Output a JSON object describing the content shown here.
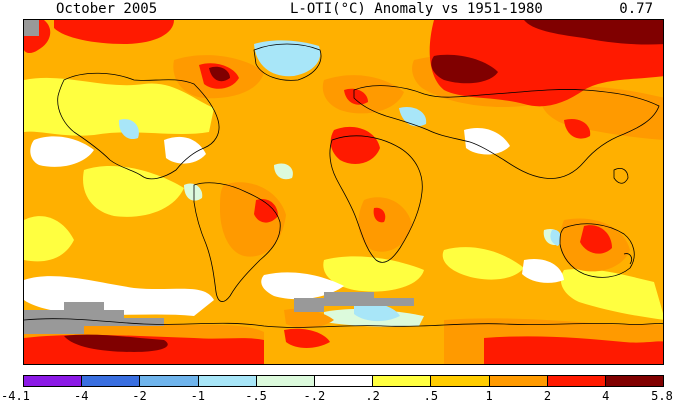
{
  "header": {
    "date": "October 2005",
    "title": "L-OTI(°C) Anomaly vs 1951-1980",
    "global_mean": "0.77"
  },
  "legend": {
    "bins": [
      {
        "label": "-4.1",
        "color": "#8c1ae6"
      },
      {
        "label": "-4",
        "color": "#3a6fe0"
      },
      {
        "label": "-2",
        "color": "#6fb4ec"
      },
      {
        "label": "-1",
        "color": "#a8e6f8"
      },
      {
        "label": "-.5",
        "color": "#dcfadc"
      },
      {
        "label": "-.2",
        "color": "#ffffff"
      },
      {
        "label": ".2",
        "color": "#ffff40"
      },
      {
        "label": ".5",
        "color": "#ffcc00"
      },
      {
        "label": "1",
        "color": "#ff9a00"
      },
      {
        "label": "2",
        "color": "#ff1a00"
      },
      {
        "label": "4",
        "color": "#800000"
      }
    ],
    "last_label": "5.8"
  },
  "map": {
    "background_color": "#ffb000",
    "missing_data_color": "#999999",
    "coastline_color": "#000000"
  }
}
